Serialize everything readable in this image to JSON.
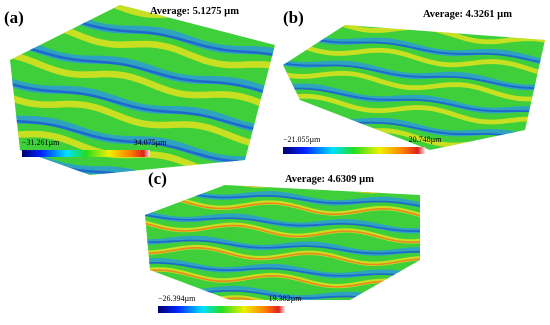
{
  "panels": [
    {
      "label": "(a)",
      "average": "Average: 5.1275 µm",
      "min": "−31.261µm",
      "max": "34.075µm"
    },
    {
      "label": "(b)",
      "average": "Average: 4.3261 µm",
      "min": "−21.055µm",
      "max": "20.748µm"
    },
    {
      "label": "(c)",
      "average": "Average: 4.6309 µm",
      "min": "−26.394µm",
      "max": "19.382µm"
    }
  ]
}
